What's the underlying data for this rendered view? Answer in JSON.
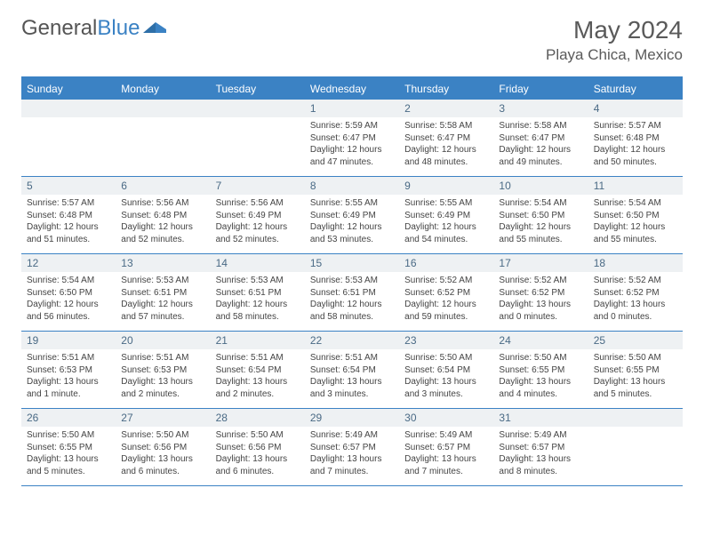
{
  "brand": {
    "part1": "General",
    "part2": "Blue"
  },
  "title": "May 2024",
  "location": "Playa Chica, Mexico",
  "colors": {
    "accent": "#3b82c4",
    "dayNumBg": "#eef1f3",
    "dayNumColor": "#4a6a85",
    "text": "#444444",
    "headerText": "#5a5a5a"
  },
  "weekdays": [
    "Sunday",
    "Monday",
    "Tuesday",
    "Wednesday",
    "Thursday",
    "Friday",
    "Saturday"
  ],
  "weeks": [
    [
      null,
      null,
      null,
      {
        "n": "1",
        "sr": "5:59 AM",
        "ss": "6:47 PM",
        "dl": "12 hours and 47 minutes."
      },
      {
        "n": "2",
        "sr": "5:58 AM",
        "ss": "6:47 PM",
        "dl": "12 hours and 48 minutes."
      },
      {
        "n": "3",
        "sr": "5:58 AM",
        "ss": "6:47 PM",
        "dl": "12 hours and 49 minutes."
      },
      {
        "n": "4",
        "sr": "5:57 AM",
        "ss": "6:48 PM",
        "dl": "12 hours and 50 minutes."
      }
    ],
    [
      {
        "n": "5",
        "sr": "5:57 AM",
        "ss": "6:48 PM",
        "dl": "12 hours and 51 minutes."
      },
      {
        "n": "6",
        "sr": "5:56 AM",
        "ss": "6:48 PM",
        "dl": "12 hours and 52 minutes."
      },
      {
        "n": "7",
        "sr": "5:56 AM",
        "ss": "6:49 PM",
        "dl": "12 hours and 52 minutes."
      },
      {
        "n": "8",
        "sr": "5:55 AM",
        "ss": "6:49 PM",
        "dl": "12 hours and 53 minutes."
      },
      {
        "n": "9",
        "sr": "5:55 AM",
        "ss": "6:49 PM",
        "dl": "12 hours and 54 minutes."
      },
      {
        "n": "10",
        "sr": "5:54 AM",
        "ss": "6:50 PM",
        "dl": "12 hours and 55 minutes."
      },
      {
        "n": "11",
        "sr": "5:54 AM",
        "ss": "6:50 PM",
        "dl": "12 hours and 55 minutes."
      }
    ],
    [
      {
        "n": "12",
        "sr": "5:54 AM",
        "ss": "6:50 PM",
        "dl": "12 hours and 56 minutes."
      },
      {
        "n": "13",
        "sr": "5:53 AM",
        "ss": "6:51 PM",
        "dl": "12 hours and 57 minutes."
      },
      {
        "n": "14",
        "sr": "5:53 AM",
        "ss": "6:51 PM",
        "dl": "12 hours and 58 minutes."
      },
      {
        "n": "15",
        "sr": "5:53 AM",
        "ss": "6:51 PM",
        "dl": "12 hours and 58 minutes."
      },
      {
        "n": "16",
        "sr": "5:52 AM",
        "ss": "6:52 PM",
        "dl": "12 hours and 59 minutes."
      },
      {
        "n": "17",
        "sr": "5:52 AM",
        "ss": "6:52 PM",
        "dl": "13 hours and 0 minutes."
      },
      {
        "n": "18",
        "sr": "5:52 AM",
        "ss": "6:52 PM",
        "dl": "13 hours and 0 minutes."
      }
    ],
    [
      {
        "n": "19",
        "sr": "5:51 AM",
        "ss": "6:53 PM",
        "dl": "13 hours and 1 minute."
      },
      {
        "n": "20",
        "sr": "5:51 AM",
        "ss": "6:53 PM",
        "dl": "13 hours and 2 minutes."
      },
      {
        "n": "21",
        "sr": "5:51 AM",
        "ss": "6:54 PM",
        "dl": "13 hours and 2 minutes."
      },
      {
        "n": "22",
        "sr": "5:51 AM",
        "ss": "6:54 PM",
        "dl": "13 hours and 3 minutes."
      },
      {
        "n": "23",
        "sr": "5:50 AM",
        "ss": "6:54 PM",
        "dl": "13 hours and 3 minutes."
      },
      {
        "n": "24",
        "sr": "5:50 AM",
        "ss": "6:55 PM",
        "dl": "13 hours and 4 minutes."
      },
      {
        "n": "25",
        "sr": "5:50 AM",
        "ss": "6:55 PM",
        "dl": "13 hours and 5 minutes."
      }
    ],
    [
      {
        "n": "26",
        "sr": "5:50 AM",
        "ss": "6:55 PM",
        "dl": "13 hours and 5 minutes."
      },
      {
        "n": "27",
        "sr": "5:50 AM",
        "ss": "6:56 PM",
        "dl": "13 hours and 6 minutes."
      },
      {
        "n": "28",
        "sr": "5:50 AM",
        "ss": "6:56 PM",
        "dl": "13 hours and 6 minutes."
      },
      {
        "n": "29",
        "sr": "5:49 AM",
        "ss": "6:57 PM",
        "dl": "13 hours and 7 minutes."
      },
      {
        "n": "30",
        "sr": "5:49 AM",
        "ss": "6:57 PM",
        "dl": "13 hours and 7 minutes."
      },
      {
        "n": "31",
        "sr": "5:49 AM",
        "ss": "6:57 PM",
        "dl": "13 hours and 8 minutes."
      },
      null
    ]
  ],
  "labels": {
    "sunrise": "Sunrise:",
    "sunset": "Sunset:",
    "daylight": "Daylight:"
  }
}
